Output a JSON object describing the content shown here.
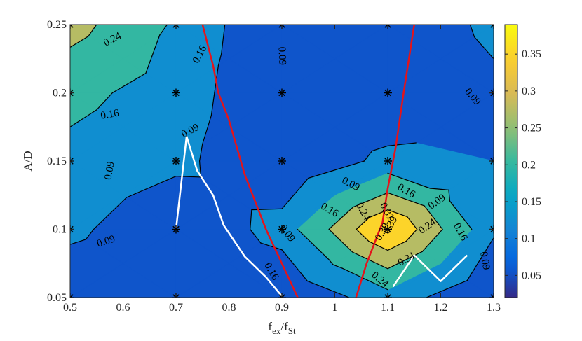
{
  "chart_data": {
    "type": "contour",
    "xlabel_main": "f",
    "xlabel_sub1": "ex",
    "xlabel_mid": "/f",
    "xlabel_sub2": "St",
    "ylabel": "A/D",
    "xlim": [
      0.5,
      1.3
    ],
    "ylim": [
      0.05,
      0.25
    ],
    "x_ticks": [
      0.5,
      0.6,
      0.7,
      0.8,
      0.9,
      1.0,
      1.1,
      1.2,
      1.3
    ],
    "x_tick_labels": [
      "0.5",
      "0.6",
      "0.7",
      "0.8",
      "0.9",
      "1",
      "1.1",
      "1.2",
      "1.3"
    ],
    "y_ticks": [
      0.05,
      0.1,
      0.15,
      0.2,
      0.25
    ],
    "y_tick_labels": [
      "0.05",
      "0.1",
      "0.15",
      "0.2",
      "0.25"
    ],
    "colorbar": {
      "range": [
        0.02,
        0.39
      ],
      "ticks": [
        0.05,
        0.1,
        0.15,
        0.2,
        0.25,
        0.3,
        0.35
      ],
      "tick_labels": [
        "0.05",
        "0.1",
        "0.15",
        "0.2",
        "0.25",
        "0.3",
        "0.35"
      ],
      "colormap": "parula"
    },
    "contour_levels": [
      0.02,
      0.09,
      0.16,
      0.24,
      0.31,
      0.39
    ],
    "grid": {
      "x": [
        0.5,
        0.7,
        0.9,
        1.1,
        1.3
      ],
      "y": [
        0.05,
        0.1,
        0.15,
        0.2,
        0.25
      ],
      "z": [
        [
          0.02,
          0.02,
          0.02,
          0.13,
          0.02
        ],
        [
          0.11,
          0.02,
          0.12,
          0.39,
          0.1
        ],
        [
          0.14,
          0.11,
          0.02,
          0.11,
          0.09
        ],
        [
          0.18,
          0.13,
          0.02,
          0.02,
          0.07
        ],
        [
          0.27,
          0.15,
          0.02,
          0.02,
          0.11
        ]
      ]
    },
    "contour_labels": [
      {
        "text": "0.24",
        "x": 0.58,
        "y": 0.239,
        "angle": -28
      },
      {
        "text": "0.16",
        "x": 0.745,
        "y": 0.228,
        "angle": -62
      },
      {
        "text": "0.09",
        "x": 0.9,
        "y": 0.227,
        "angle": 88
      },
      {
        "text": "0.16",
        "x": 0.575,
        "y": 0.184,
        "angle": -10
      },
      {
        "text": "0.09",
        "x": 0.727,
        "y": 0.172,
        "angle": -28
      },
      {
        "text": "0.09",
        "x": 1.26,
        "y": 0.197,
        "angle": 50
      },
      {
        "text": "0.09",
        "x": 0.575,
        "y": 0.143,
        "angle": -80
      },
      {
        "text": "0.09",
        "x": 0.568,
        "y": 0.091,
        "angle": -18
      },
      {
        "text": "0.09",
        "x": 1.03,
        "y": 0.133,
        "angle": 28
      },
      {
        "text": "0.16",
        "x": 1.135,
        "y": 0.128,
        "angle": 30
      },
      {
        "text": "0.09",
        "x": 1.193,
        "y": 0.12,
        "angle": -35
      },
      {
        "text": "0.16",
        "x": 0.99,
        "y": 0.114,
        "angle": 30
      },
      {
        "text": "0.24",
        "x": 1.053,
        "y": 0.113,
        "angle": 60
      },
      {
        "text": "0.31",
        "x": 1.098,
        "y": 0.113,
        "angle": 60
      },
      {
        "text": "0.24",
        "x": 1.175,
        "y": 0.102,
        "angle": -35
      },
      {
        "text": "0.39",
        "x": 1.105,
        "y": 0.103,
        "angle": -60
      },
      {
        "text": "0.39",
        "x": 1.09,
        "y": 0.098,
        "angle": -60
      },
      {
        "text": "0.09",
        "x": 0.91,
        "y": 0.097,
        "angle": 55
      },
      {
        "text": "0.16",
        "x": 1.237,
        "y": 0.098,
        "angle": 62
      },
      {
        "text": "0.09",
        "x": 1.283,
        "y": 0.077,
        "angle": 80
      },
      {
        "text": "0.31",
        "x": 1.136,
        "y": 0.078,
        "angle": -30
      },
      {
        "text": "0.16",
        "x": 0.88,
        "y": 0.069,
        "angle": 60
      },
      {
        "text": "0.24",
        "x": 1.085,
        "y": 0.063,
        "angle": 40
      }
    ],
    "red_curves": [
      {
        "x": [
          0.75,
          0.77,
          0.78,
          0.8,
          0.83,
          0.87,
          0.9,
          0.93
        ],
        "y": [
          0.25,
          0.22,
          0.2,
          0.18,
          0.14,
          0.1,
          0.075,
          0.05
        ]
      },
      {
        "x": [
          1.04,
          1.06,
          1.09,
          1.1,
          1.115,
          1.13,
          1.15
        ],
        "y": [
          0.05,
          0.075,
          0.105,
          0.13,
          0.16,
          0.2,
          0.25
        ]
      }
    ],
    "white_curves": [
      {
        "x": [
          0.7,
          0.72,
          0.74,
          0.77,
          0.79,
          0.83,
          0.87,
          0.9
        ],
        "y": [
          0.1,
          0.168,
          0.143,
          0.125,
          0.103,
          0.08,
          0.065,
          0.051
        ]
      },
      {
        "x": [
          1.11,
          1.15,
          1.2,
          1.25
        ],
        "y": [
          0.058,
          0.081,
          0.062,
          0.081
        ]
      }
    ]
  }
}
